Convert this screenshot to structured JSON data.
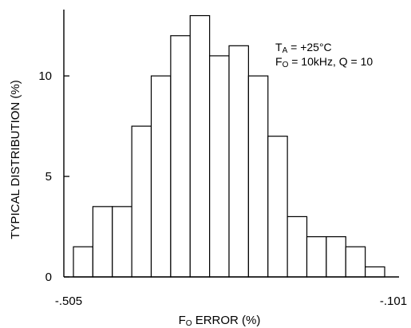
{
  "chart_data": {
    "type": "bar",
    "title": "",
    "xlabel_main": "F",
    "xlabel_sub": "O",
    "xlabel_rest": " ERROR (%)",
    "ylabel": "TYPICAL DISTRIBUTION (%)",
    "x_tick_labels": {
      "left": "-.505",
      "right": "-.101"
    },
    "y_ticks": [
      0,
      5,
      10
    ],
    "ylim": [
      0,
      13.3
    ],
    "bins": 16,
    "values": [
      1.5,
      3.5,
      3.5,
      7.5,
      10,
      12,
      13,
      11,
      11.5,
      10,
      7,
      3,
      2,
      2,
      1.5,
      0.5
    ],
    "grid": false,
    "annotation": {
      "line1_main": "T",
      "line1_sub": "A",
      "line1_rest": " = +25°C",
      "line2_main": "F",
      "line2_sub": "O",
      "line2_rest": " = 10kHz, Q = 10"
    }
  }
}
